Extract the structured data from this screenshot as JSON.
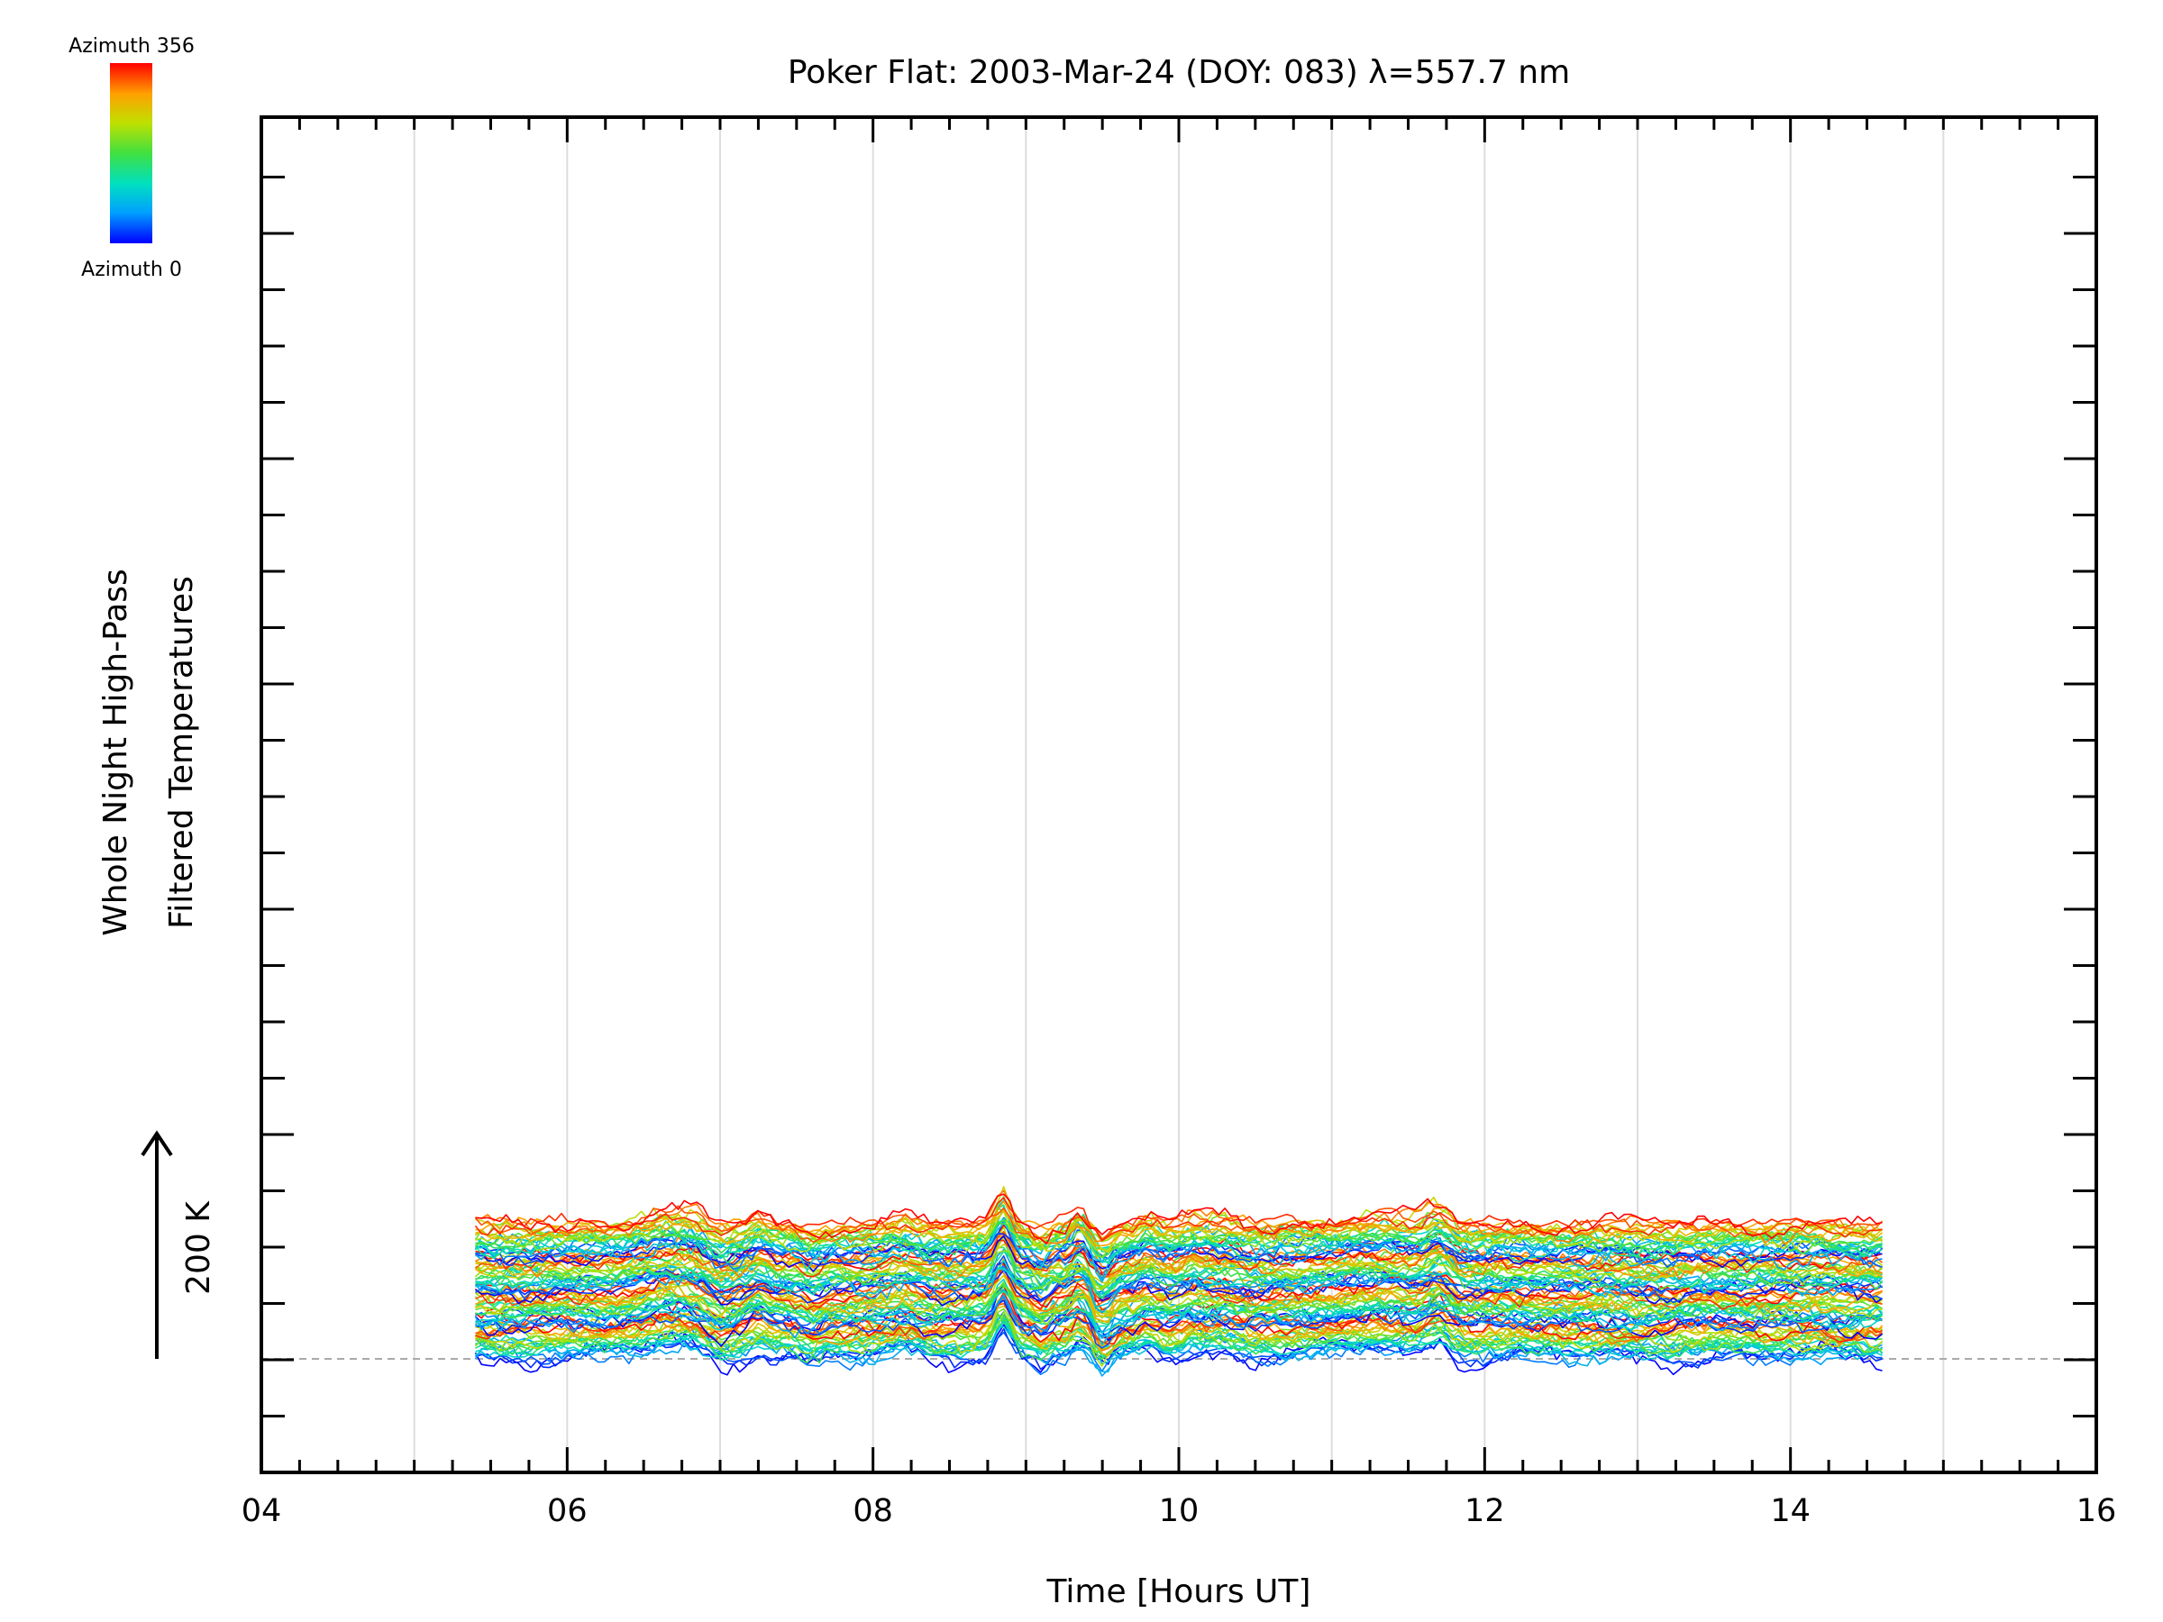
{
  "chart_data": {
    "type": "line",
    "title": "Poker Flat: 2003-Mar-24 (DOY: 083) λ=557.7 nm",
    "xlabel": "Time [Hours UT]",
    "ylabel_line1": "Whole Night High-Pass",
    "ylabel_line2": "Filtered Temperatures",
    "scale_label": "200 K",
    "scale_k": 200,
    "xlim": [
      4,
      16
    ],
    "x_ticks": [
      "04",
      "06",
      "08",
      "10",
      "12",
      "14",
      "16"
    ],
    "x_grid_hours": [
      5,
      6,
      7,
      8,
      9,
      10,
      11,
      12,
      13,
      14,
      15
    ],
    "colorbar": {
      "top_label": "Azimuth 356",
      "bottom_label": "Azimuth 0",
      "colormap": [
        "#0000ff",
        "#00a0ff",
        "#00e0c0",
        "#40e040",
        "#c0e000",
        "#ffa000",
        "#ff0000"
      ]
    },
    "series_layout": {
      "count": 96,
      "azimuth_cycle": 24,
      "t_start_hours": 5.4,
      "t_end_hours": 14.6,
      "offset_k_per_trace": 10
    },
    "common_features_hours": [
      6.7,
      7.0,
      7.25,
      7.6,
      8.2,
      8.85,
      9.1,
      9.35,
      9.5,
      9.8,
      10.1,
      10.3,
      11.3,
      11.7
    ],
    "baseline_dashed": true
  }
}
